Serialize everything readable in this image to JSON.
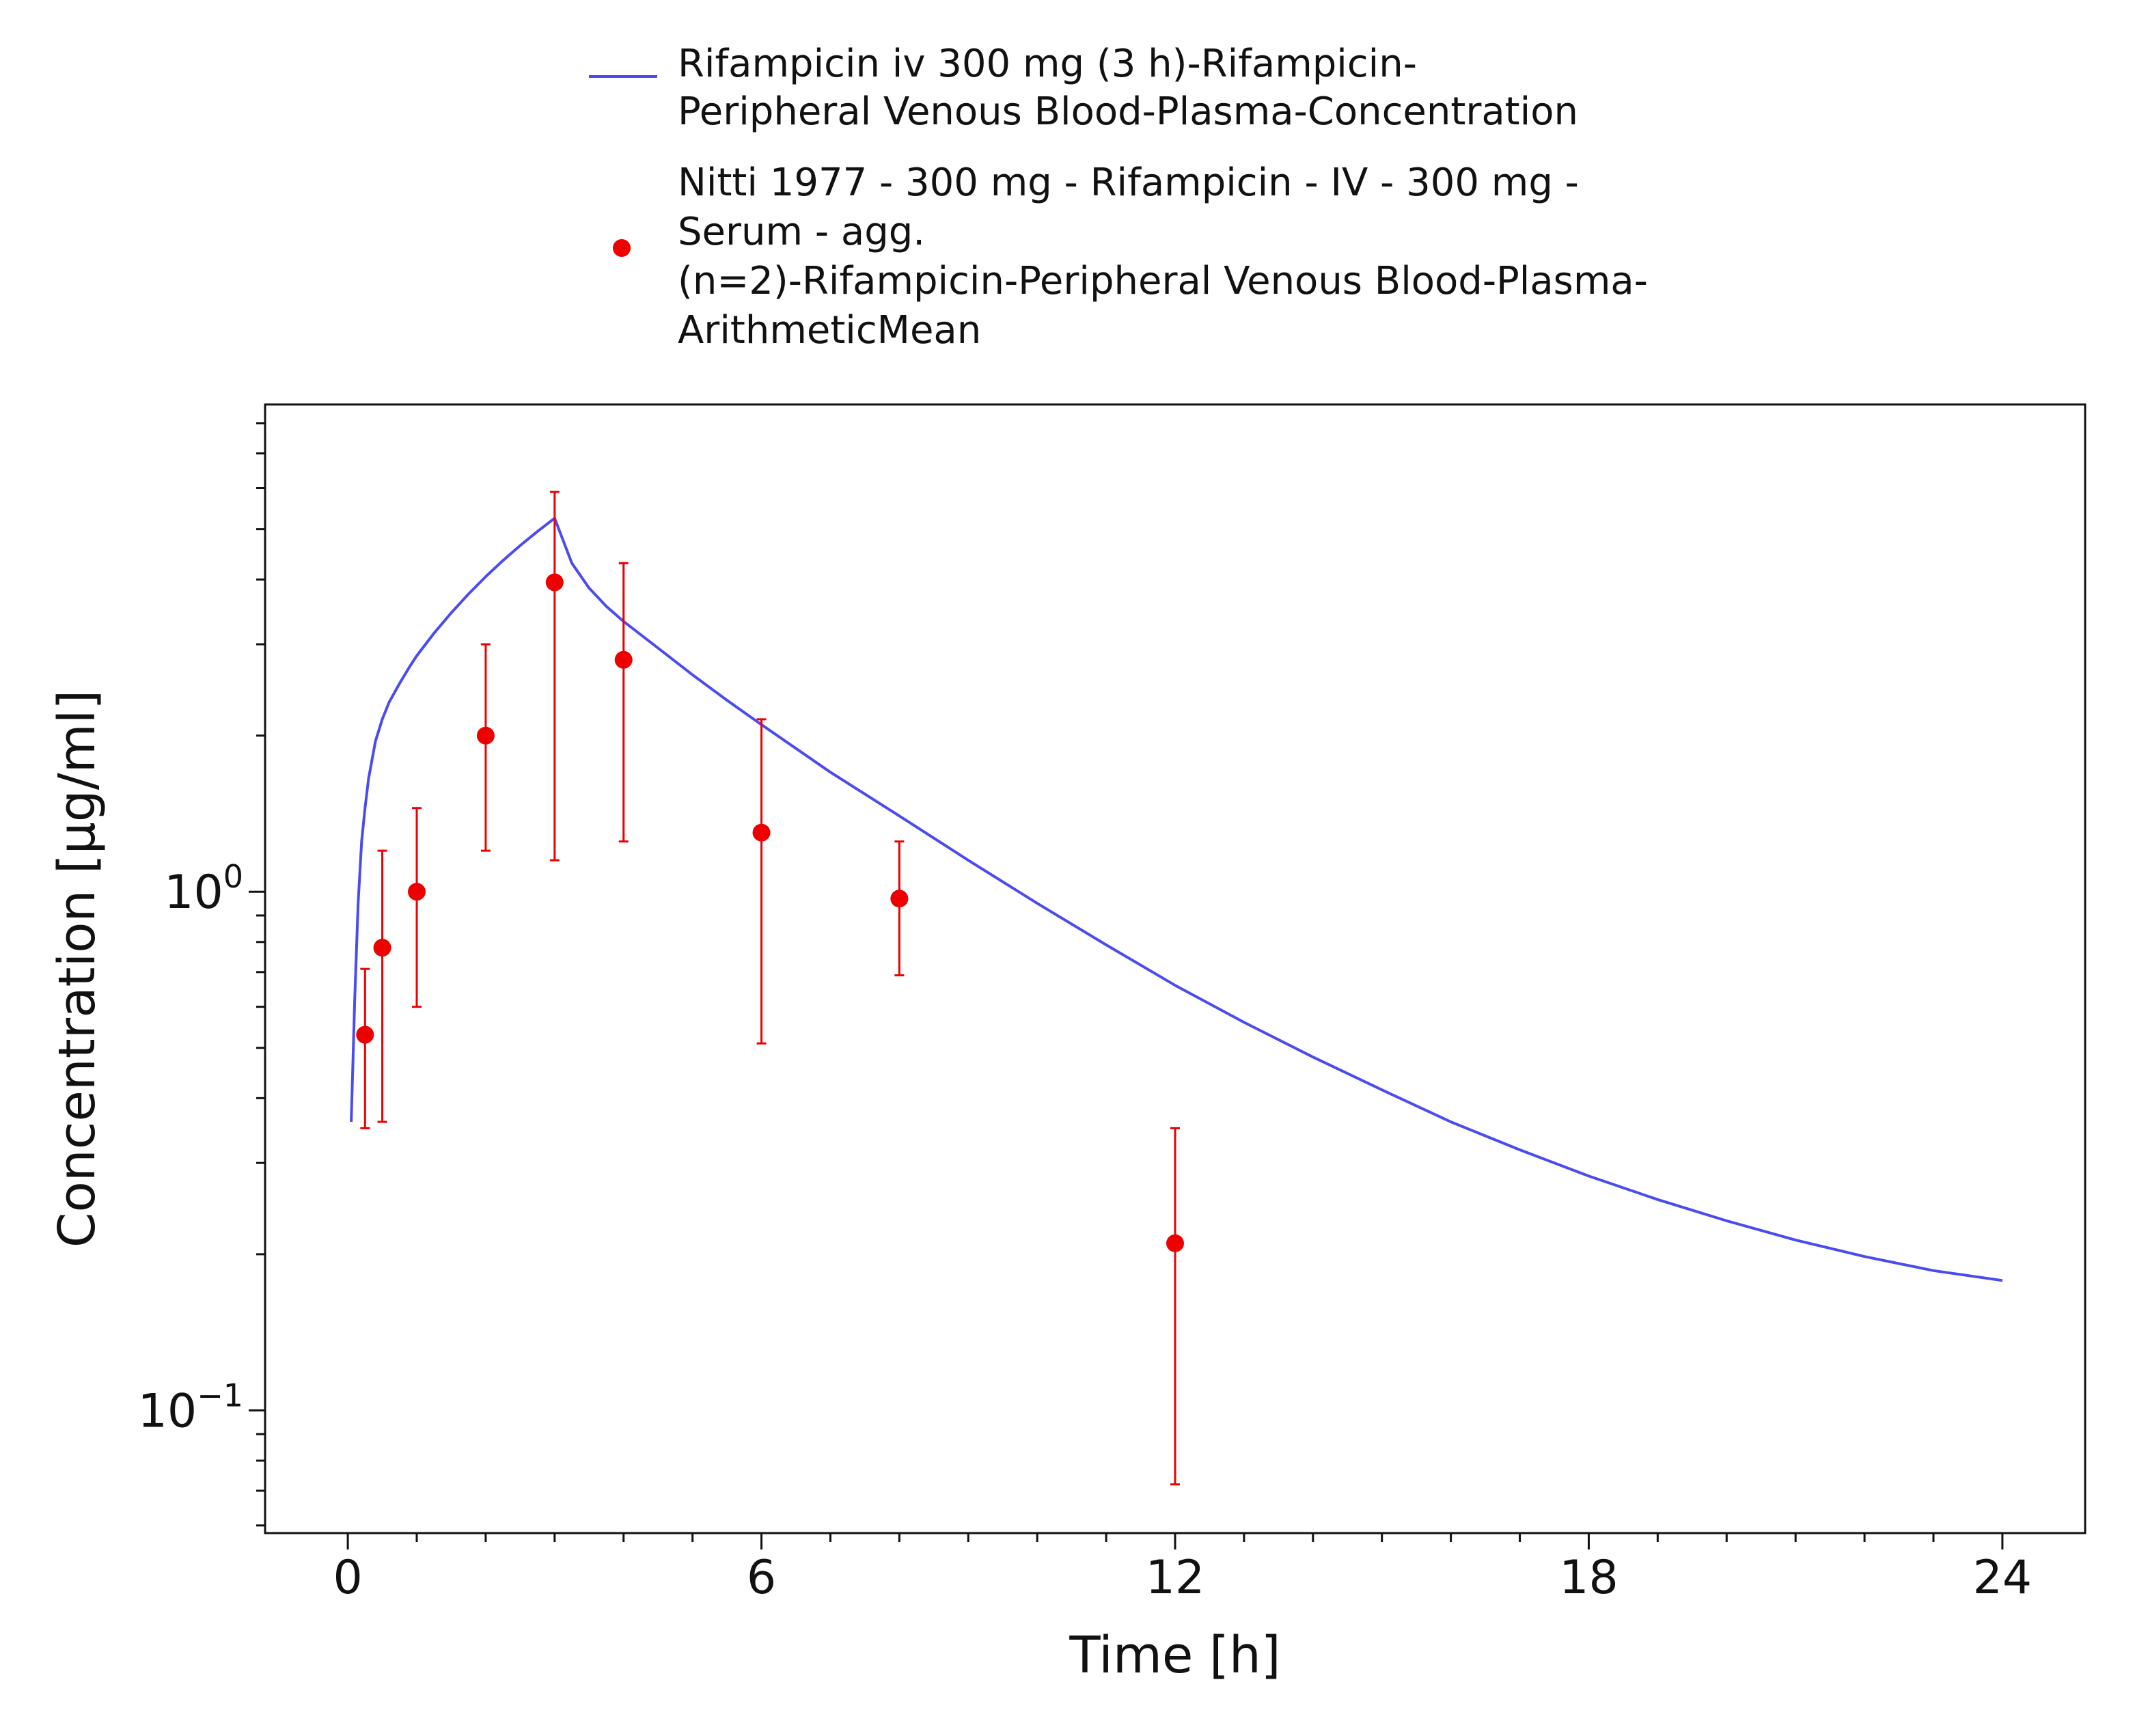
{
  "chart_data": {
    "type": "line",
    "xlabel": "Time [h]",
    "ylabel": "Concentration [µg/ml]",
    "x_scale": "linear",
    "y_scale": "log",
    "xlim": [
      -1.2,
      25.2
    ],
    "ylim": [
      0.058,
      8.7
    ],
    "x_ticks": [
      0,
      6,
      12,
      18,
      24
    ],
    "x_tick_labels": [
      "0",
      "6",
      "12",
      "18",
      "24"
    ],
    "y_ticks": [
      0.1,
      1
    ],
    "y_tick_labels": [
      {
        "base": "10",
        "exp": "−1"
      },
      {
        "base": "10",
        "exp": "0"
      }
    ],
    "grid": false,
    "legend_position": "top-center",
    "legend": [
      {
        "kind": "line",
        "lines": [
          "Rifampicin iv 300 mg (3 h)-Rifampicin-",
          "Peripheral Venous Blood-Plasma-Concentration"
        ]
      },
      {
        "kind": "marker",
        "lines": [
          "Nitti 1977 - 300 mg - Rifampicin - IV - 300 mg -",
          "Serum - agg.",
          "(n=2)-Rifampicin-Peripheral Venous Blood-Plasma-",
          "ArithmeticMean"
        ]
      }
    ],
    "series": [
      {
        "kind": "line",
        "color": "#4b4bf0",
        "x": [
          0.05,
          0.1,
          0.15,
          0.2,
          0.25,
          0.3,
          0.4,
          0.5,
          0.6,
          0.75,
          0.9,
          1.0,
          1.25,
          1.5,
          1.75,
          2.0,
          2.25,
          2.5,
          2.75,
          3.0,
          3.25,
          3.5,
          3.75,
          4.0,
          4.5,
          5.0,
          5.5,
          6.0,
          7.0,
          8.0,
          9.0,
          10.0,
          11.0,
          12.0,
          13.0,
          14.0,
          15.0,
          16.0,
          17.0,
          18.0,
          19.0,
          20.0,
          21.0,
          22.0,
          23.0,
          24.0
        ],
        "y": [
          0.36,
          0.62,
          0.95,
          1.25,
          1.45,
          1.65,
          1.95,
          2.15,
          2.32,
          2.52,
          2.72,
          2.85,
          3.15,
          3.45,
          3.75,
          4.05,
          4.35,
          4.65,
          4.95,
          5.25,
          4.3,
          3.85,
          3.55,
          3.32,
          2.95,
          2.62,
          2.34,
          2.1,
          1.7,
          1.4,
          1.15,
          0.95,
          0.79,
          0.66,
          0.56,
          0.48,
          0.415,
          0.36,
          0.318,
          0.283,
          0.255,
          0.232,
          0.213,
          0.198,
          0.186,
          0.178
        ]
      },
      {
        "kind": "scatter",
        "color": "#ee0000",
        "x": [
          0.25,
          0.5,
          1.0,
          2.0,
          3.0,
          4.0,
          6.0,
          8.0,
          12.0
        ],
        "y": [
          0.53,
          0.78,
          1.0,
          2.0,
          3.95,
          2.8,
          1.3,
          0.97,
          0.21
        ],
        "err_low": [
          0.35,
          0.36,
          0.6,
          1.2,
          1.15,
          1.25,
          0.51,
          0.69,
          0.072
        ],
        "err_high": [
          0.71,
          1.2,
          1.45,
          3.0,
          5.9,
          4.3,
          2.15,
          1.25,
          0.35
        ]
      }
    ]
  }
}
